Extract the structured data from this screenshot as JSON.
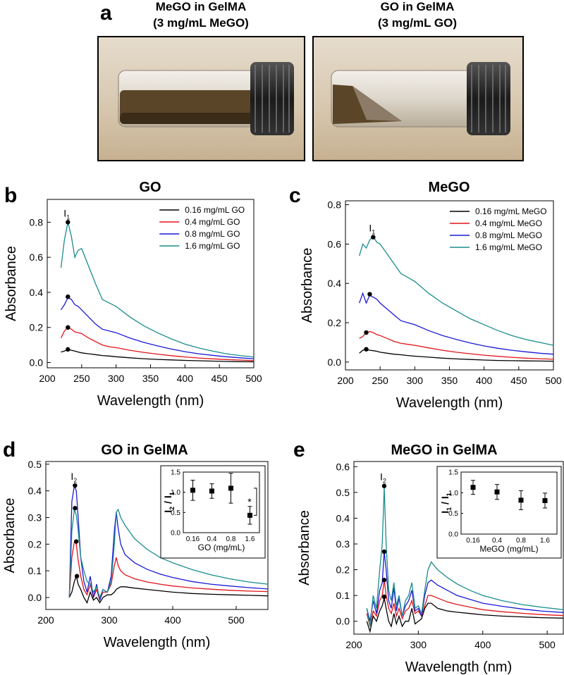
{
  "panel_a": {
    "label": "a",
    "photos": [
      {
        "caption": [
          "MeGO in GelMA",
          "(3 mg/mL MeGO)"
        ]
      },
      {
        "caption": [
          "GO in GelMA",
          "(3 mg/mL GO)"
        ]
      }
    ]
  },
  "chart_data": [
    {
      "type": "line",
      "panel": "b",
      "title": "GO",
      "xlabel": "Wavelength (nm)",
      "ylabel": "Absorbance",
      "xlim": [
        200,
        500
      ],
      "ylim": [
        -0.03,
        0.93
      ],
      "xticks": [
        200,
        250,
        300,
        350,
        400,
        450,
        500
      ],
      "yticks": [
        {
          "value": 0,
          "label": "0.0"
        },
        0.2,
        0.4,
        0.6,
        0.8
      ],
      "legend": "upper right",
      "x": [
        220,
        225,
        230,
        235,
        240,
        245,
        250,
        260,
        270,
        280,
        290,
        300,
        320,
        340,
        360,
        380,
        400,
        420,
        440,
        460,
        480,
        500
      ],
      "series": [
        {
          "name": "0.16 mg/mL GO",
          "color": "#000000",
          "values": [
            0.06,
            0.065,
            0.075,
            0.07,
            0.065,
            0.06,
            0.055,
            0.05,
            0.045,
            0.04,
            0.037,
            0.033,
            0.027,
            0.022,
            0.018,
            0.015,
            0.012,
            0.01,
            0.008,
            0.006,
            0.005,
            0.004
          ]
        },
        {
          "name": "0.4 mg/mL GO",
          "color": "#e0151a",
          "values": [
            0.14,
            0.18,
            0.2,
            0.19,
            0.175,
            0.17,
            0.165,
            0.14,
            0.12,
            0.1,
            0.09,
            0.085,
            0.07,
            0.058,
            0.048,
            0.039,
            0.032,
            0.026,
            0.021,
            0.017,
            0.014,
            0.011
          ]
        },
        {
          "name": "0.8 mg/mL GO",
          "color": "#1a1ad6",
          "values": [
            0.3,
            0.33,
            0.37,
            0.36,
            0.33,
            0.32,
            0.3,
            0.26,
            0.22,
            0.19,
            0.18,
            0.17,
            0.14,
            0.115,
            0.095,
            0.077,
            0.062,
            0.05,
            0.041,
            0.033,
            0.027,
            0.022
          ]
        },
        {
          "name": "1.6 mg/mL GO",
          "color": "#1b8c8c",
          "values": [
            0.54,
            0.7,
            0.8,
            0.72,
            0.6,
            0.64,
            0.65,
            0.55,
            0.45,
            0.36,
            0.34,
            0.32,
            0.26,
            0.21,
            0.17,
            0.135,
            0.105,
            0.083,
            0.065,
            0.05,
            0.04,
            0.032
          ]
        }
      ],
      "markers": {
        "x": [
          230,
          230,
          230,
          230
        ],
        "values": [
          0.075,
          0.2,
          0.375,
          0.8
        ]
      },
      "peak_label": {
        "text": "I",
        "sub": "1"
      }
    },
    {
      "type": "line",
      "panel": "c",
      "title": "MeGO",
      "xlabel": "Wavelength (nm)",
      "ylabel": "Absorbance",
      "xlim": [
        200,
        500
      ],
      "ylim": [
        -0.04,
        0.82
      ],
      "xticks": [
        200,
        250,
        300,
        350,
        400,
        450,
        500
      ],
      "yticks": [
        {
          "value": 0,
          "label": "0.0"
        },
        0.2,
        0.4,
        0.6,
        0.8
      ],
      "legend": "upper right",
      "x": [
        220,
        225,
        230,
        235,
        240,
        245,
        250,
        260,
        270,
        280,
        290,
        300,
        320,
        340,
        360,
        380,
        400,
        420,
        440,
        460,
        480,
        500
      ],
      "series": [
        {
          "name": "0.16 mg/mL MeGO",
          "color": "#000000",
          "values": [
            0.045,
            0.06,
            0.065,
            0.06,
            0.058,
            0.055,
            0.05,
            0.045,
            0.04,
            0.037,
            0.033,
            0.03,
            0.025,
            0.02,
            0.016,
            0.013,
            0.01,
            0.008,
            0.007,
            0.006,
            0.005,
            0.004
          ]
        },
        {
          "name": "0.4 mg/mL MeGO",
          "color": "#e0151a",
          "values": [
            0.12,
            0.13,
            0.15,
            0.155,
            0.15,
            0.14,
            0.135,
            0.12,
            0.105,
            0.095,
            0.09,
            0.085,
            0.072,
            0.06,
            0.05,
            0.042,
            0.035,
            0.029,
            0.024,
            0.02,
            0.017,
            0.014
          ]
        },
        {
          "name": "0.8 mg/mL MeGO",
          "color": "#1a1ad6",
          "values": [
            0.3,
            0.35,
            0.3,
            0.34,
            0.33,
            0.32,
            0.3,
            0.27,
            0.24,
            0.21,
            0.2,
            0.19,
            0.16,
            0.135,
            0.115,
            0.097,
            0.082,
            0.07,
            0.06,
            0.052,
            0.045,
            0.04
          ]
        },
        {
          "name": "1.6 mg/mL MeGO",
          "color": "#1b8c8c",
          "values": [
            0.54,
            0.6,
            0.58,
            0.62,
            0.64,
            0.61,
            0.6,
            0.55,
            0.5,
            0.45,
            0.43,
            0.41,
            0.35,
            0.3,
            0.26,
            0.22,
            0.19,
            0.16,
            0.135,
            0.115,
            0.1,
            0.085
          ]
        }
      ],
      "markers": {
        "x": [
          230,
          230,
          235,
          240
        ],
        "values": [
          0.065,
          0.15,
          0.345,
          0.635
        ]
      },
      "peak_label": {
        "text": "I",
        "sub": "1"
      }
    },
    {
      "type": "line",
      "panel": "d",
      "title": "GO in GelMA",
      "xlabel": "Wavelength (nm)",
      "ylabel": "Absorbance",
      "xlim": [
        200,
        550
      ],
      "ylim": [
        -0.045,
        0.51
      ],
      "xticks": [
        200,
        300,
        400,
        500
      ],
      "yticks": [
        {
          "value": 0,
          "label": "0.0"
        },
        0.1,
        0.2,
        0.3,
        0.4,
        0.5
      ],
      "x": [
        237,
        241,
        245,
        248,
        251,
        255,
        260,
        265,
        270,
        275,
        280,
        285,
        290,
        297,
        303,
        308,
        311,
        314,
        318,
        325,
        340,
        360,
        380,
        400,
        430,
        460,
        490,
        520,
        550
      ],
      "series": [
        {
          "color": "#000000",
          "values": [
            0.0,
            0.02,
            0.06,
            0.08,
            0.05,
            0.03,
            0.0,
            -0.02,
            0.02,
            -0.01,
            0.0,
            -0.02,
            0.0,
            0.01,
            0.01,
            0.02,
            0.03,
            0.035,
            0.04,
            0.04,
            0.035,
            0.03,
            0.025,
            0.02,
            0.015,
            0.012,
            0.01,
            0.008,
            0.006
          ]
        },
        {
          "color": "#e0151a",
          "values": [
            0.0,
            0.15,
            0.21,
            0.2,
            0.14,
            0.08,
            0.03,
            0.01,
            0.05,
            0.0,
            0.03,
            -0.01,
            0.02,
            0.02,
            0.05,
            0.12,
            0.15,
            0.12,
            0.1,
            0.085,
            0.07,
            0.058,
            0.05,
            0.043,
            0.036,
            0.031,
            0.027,
            0.024,
            0.022
          ]
        },
        {
          "color": "#1a1ad6",
          "values": [
            0.0,
            0.36,
            0.42,
            0.4,
            0.3,
            0.15,
            0.06,
            0.02,
            0.08,
            0.0,
            0.05,
            -0.01,
            0.03,
            0.02,
            0.08,
            0.25,
            0.32,
            0.26,
            0.2,
            0.16,
            0.13,
            0.105,
            0.088,
            0.075,
            0.06,
            0.05,
            0.043,
            0.037,
            0.032
          ]
        },
        {
          "color": "#1b8c8c",
          "values": [
            0.0,
            0.25,
            0.33,
            0.31,
            0.25,
            0.15,
            0.1,
            0.06,
            0.05,
            0.02,
            0.04,
            0.0,
            0.03,
            0.02,
            0.06,
            0.2,
            0.32,
            0.33,
            0.3,
            0.27,
            0.22,
            0.18,
            0.15,
            0.13,
            0.105,
            0.085,
            0.07,
            0.058,
            0.05
          ]
        }
      ],
      "markers": {
        "x": [
          249,
          248,
          246,
          246
        ],
        "values": [
          0.08,
          0.21,
          0.42,
          0.335
        ]
      },
      "peak_label": {
        "text": "I",
        "sub": "2"
      },
      "inset": {
        "type": "errorbar",
        "categories": [
          "0.16",
          "0.4",
          "0.8",
          "1.6"
        ],
        "values": [
          1.05,
          1.03,
          1.1,
          0.43
        ],
        "errors": [
          0.25,
          0.18,
          0.37,
          0.22
        ],
        "ylim": [
          0,
          1.5
        ],
        "yticks": [
          {
            "value": 0,
            "label": "0.0"
          },
          0.5,
          {
            "value": 1,
            "label": "1.0"
          },
          1.5
        ],
        "xlabel": "GO (mg/mL)",
        "ylabel": [
          {
            "text": "I"
          },
          {
            "text": "2",
            "sub": true
          },
          {
            "text": " / I"
          },
          {
            "text": "1",
            "sub": true
          }
        ],
        "significance": "*"
      }
    },
    {
      "type": "line",
      "panel": "e",
      "title": "MeGO in GelMA",
      "xlabel": "Wavelength (nm)",
      "ylabel": "Absorbance",
      "xlim": [
        200,
        525
      ],
      "ylim": [
        -0.05,
        0.62
      ],
      "xticks": [
        200,
        300,
        400,
        500
      ],
      "yticks": [
        {
          "value": 0,
          "label": "0.0"
        },
        0.1,
        0.2,
        0.3,
        0.4,
        0.5,
        0.6
      ],
      "x": [
        220,
        225,
        230,
        235,
        240,
        244,
        247,
        250,
        254,
        258,
        262,
        266,
        270,
        275,
        280,
        285,
        290,
        295,
        300,
        305,
        310,
        315,
        320,
        330,
        345,
        360,
        380,
        400,
        430,
        460,
        490,
        525
      ],
      "series": [
        {
          "color": "#000000",
          "values": [
            0.0,
            -0.04,
            0.02,
            0.0,
            0.04,
            0.06,
            0.09,
            0.05,
            0.0,
            -0.02,
            0.03,
            -0.01,
            0.02,
            -0.02,
            0.0,
            0.0,
            0.05,
            -0.01,
            0.0,
            0.01,
            0.05,
            0.07,
            0.07,
            0.05,
            0.04,
            0.035,
            0.03,
            0.025,
            0.02,
            0.017,
            0.014,
            0.012
          ]
        },
        {
          "color": "#e0151a",
          "values": [
            0.03,
            -0.02,
            0.04,
            0.02,
            0.08,
            0.1,
            0.16,
            0.1,
            0.05,
            0.03,
            0.07,
            0.02,
            0.05,
            0.01,
            0.04,
            0.05,
            0.08,
            0.03,
            0.04,
            0.02,
            0.06,
            0.1,
            0.1,
            0.09,
            0.075,
            0.065,
            0.055,
            0.045,
            0.037,
            0.031,
            0.026,
            0.022
          ]
        },
        {
          "color": "#1a1ad6",
          "values": [
            0.05,
            0.0,
            0.08,
            0.03,
            0.12,
            0.15,
            0.27,
            0.2,
            0.08,
            0.05,
            0.13,
            0.04,
            0.09,
            0.02,
            0.06,
            0.08,
            0.12,
            0.04,
            0.05,
            0.02,
            0.1,
            0.15,
            0.16,
            0.14,
            0.12,
            0.1,
            0.085,
            0.07,
            0.058,
            0.048,
            0.04,
            0.034
          ]
        },
        {
          "color": "#1b8c8c",
          "values": [
            0.05,
            -0.02,
            0.1,
            0.05,
            0.2,
            0.3,
            0.52,
            0.3,
            0.12,
            0.08,
            0.15,
            0.06,
            0.1,
            0.02,
            0.08,
            0.1,
            0.15,
            0.05,
            0.06,
            0.03,
            0.12,
            0.2,
            0.23,
            0.2,
            0.17,
            0.145,
            0.12,
            0.1,
            0.08,
            0.065,
            0.055,
            0.045
          ]
        }
      ],
      "markers": {
        "x": [
          247,
          247,
          247,
          247
        ],
        "values": [
          0.095,
          0.16,
          0.27,
          0.525
        ]
      },
      "peak_label": {
        "text": "I",
        "sub": "2"
      },
      "inset": {
        "type": "errorbar",
        "categories": [
          "0.16",
          "0.4",
          "0.8",
          "1.6"
        ],
        "values": [
          1.13,
          1.02,
          0.82,
          0.81
        ],
        "errors": [
          0.17,
          0.18,
          0.23,
          0.18
        ],
        "ylim": [
          0,
          1.5
        ],
        "yticks": [
          {
            "value": 0,
            "label": "0.0"
          },
          0.5,
          {
            "value": 1,
            "label": "1.0"
          },
          1.5
        ],
        "xlabel": "MeGO (mg/mL)",
        "ylabel": [
          {
            "text": "I"
          },
          {
            "text": "1",
            "sub": true
          },
          {
            "text": " / I"
          },
          {
            "text": "1",
            "sub": true
          }
        ]
      }
    }
  ]
}
